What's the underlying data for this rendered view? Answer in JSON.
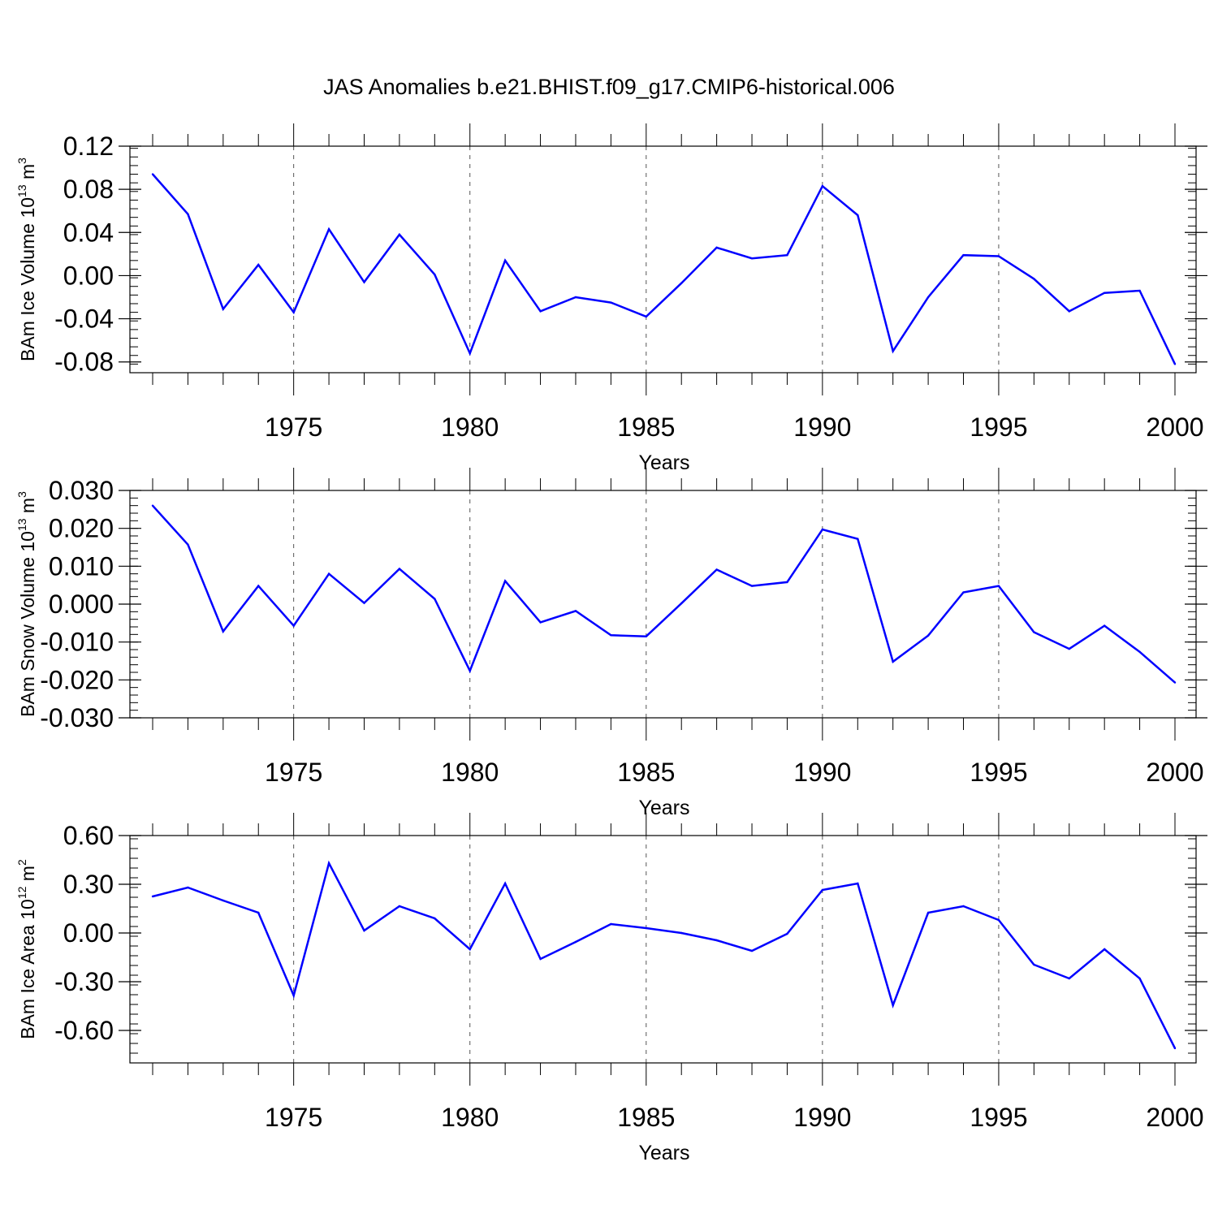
{
  "title": "JAS Anomalies b.e21.BHIST.f09_g17.CMIP6-historical.006",
  "colors": {
    "line": "#0000ff",
    "axes": "#000000",
    "grid": "#555555"
  },
  "chart_data": [
    {
      "type": "line",
      "ylabel": {
        "text": "BAm Ice Volume 10",
        "exp": "13",
        "unit": " m",
        "unit_exp": "3"
      },
      "xlabel": "Years",
      "xlim": [
        1971,
        2000
      ],
      "ylim": [
        -0.09,
        0.12
      ],
      "yticks": [
        0.12,
        0.08,
        0.04,
        0.0,
        -0.04,
        -0.08
      ],
      "ytick_labels": [
        "0.12",
        "0.08",
        "0.04",
        "0.00",
        "-0.04",
        "-0.08"
      ],
      "xticks": [
        1975,
        1980,
        1985,
        1990,
        1995,
        2000
      ],
      "xtick_labels": [
        "1975",
        "1980",
        "1985",
        "1990",
        "1995",
        "2000"
      ],
      "grid": "vertical dashed at major x ticks",
      "x": [
        1971,
        1972,
        1973,
        1974,
        1975,
        1976,
        1977,
        1978,
        1979,
        1980,
        1981,
        1982,
        1983,
        1984,
        1985,
        1986,
        1987,
        1988,
        1989,
        1990,
        1991,
        1992,
        1993,
        1994,
        1995,
        1996,
        1997,
        1998,
        1999,
        2000
      ],
      "values": [
        0.094,
        0.057,
        -0.031,
        0.01,
        -0.034,
        0.043,
        -0.006,
        0.038,
        0.001,
        -0.072,
        0.014,
        -0.033,
        -0.02,
        -0.025,
        -0.038,
        -0.007,
        0.026,
        0.016,
        0.019,
        0.083,
        0.056,
        -0.07,
        -0.02,
        0.019,
        0.018,
        -0.003,
        -0.033,
        -0.016,
        -0.014,
        -0.082
      ]
    },
    {
      "type": "line",
      "ylabel": {
        "text": "BAm Snow Volume 10",
        "exp": "13",
        "unit": " m",
        "unit_exp": "3"
      },
      "xlabel": "Years",
      "xlim": [
        1971,
        2000
      ],
      "ylim": [
        -0.03,
        0.03
      ],
      "yticks": [
        0.03,
        0.02,
        0.01,
        0.0,
        -0.01,
        -0.02,
        -0.03
      ],
      "ytick_labels": [
        "0.030",
        "0.020",
        "0.010",
        "0.000",
        "-0.010",
        "-0.020",
        "-0.030"
      ],
      "xticks": [
        1975,
        1980,
        1985,
        1990,
        1995,
        2000
      ],
      "xtick_labels": [
        "1975",
        "1980",
        "1985",
        "1990",
        "1995",
        "2000"
      ],
      "grid": "vertical dashed at major x ticks",
      "x": [
        1971,
        1972,
        1973,
        1974,
        1975,
        1976,
        1977,
        1978,
        1979,
        1980,
        1981,
        1982,
        1983,
        1984,
        1985,
        1986,
        1987,
        1988,
        1989,
        1990,
        1991,
        1992,
        1993,
        1994,
        1995,
        1996,
        1997,
        1998,
        1999,
        2000
      ],
      "values": [
        0.026,
        0.0157,
        -0.0072,
        0.0048,
        -0.0057,
        0.008,
        0.0003,
        0.0093,
        0.0014,
        -0.0176,
        0.0061,
        -0.0048,
        -0.0018,
        -0.0082,
        -0.0085,
        0.0002,
        0.0091,
        0.0048,
        0.0058,
        0.0197,
        0.0172,
        -0.0152,
        -0.0083,
        0.0031,
        0.0048,
        -0.0074,
        -0.0118,
        -0.0057,
        -0.0126,
        -0.0207
      ]
    },
    {
      "type": "line",
      "ylabel": {
        "text": "BAm Ice Area 10",
        "exp": "12",
        "unit": " m",
        "unit_exp": "2"
      },
      "xlabel": "Years",
      "xlim": [
        1971,
        2000
      ],
      "ylim": [
        -0.8,
        0.6
      ],
      "yticks": [
        0.6,
        0.3,
        0.0,
        -0.3,
        -0.6
      ],
      "ytick_labels": [
        "0.60",
        "0.30",
        "0.00",
        "-0.30",
        "-0.60"
      ],
      "xticks": [
        1975,
        1980,
        1985,
        1990,
        1995,
        2000
      ],
      "xtick_labels": [
        "1975",
        "1980",
        "1985",
        "1990",
        "1995",
        "2000"
      ],
      "grid": "vertical dashed at major x ticks",
      "x": [
        1971,
        1972,
        1973,
        1974,
        1975,
        1976,
        1977,
        1978,
        1979,
        1980,
        1981,
        1982,
        1983,
        1984,
        1985,
        1986,
        1987,
        1988,
        1989,
        1990,
        1991,
        1992,
        1993,
        1994,
        1995,
        1996,
        1997,
        1998,
        1999,
        2000
      ],
      "values": [
        0.225,
        0.28,
        0.2,
        0.125,
        -0.385,
        0.43,
        0.015,
        0.165,
        0.09,
        -0.1,
        0.305,
        -0.16,
        -0.055,
        0.055,
        0.03,
        0.0,
        -0.045,
        -0.11,
        -0.005,
        0.265,
        0.305,
        -0.445,
        0.125,
        0.165,
        0.08,
        -0.195,
        -0.28,
        -0.1,
        -0.28,
        -0.71
      ]
    }
  ]
}
